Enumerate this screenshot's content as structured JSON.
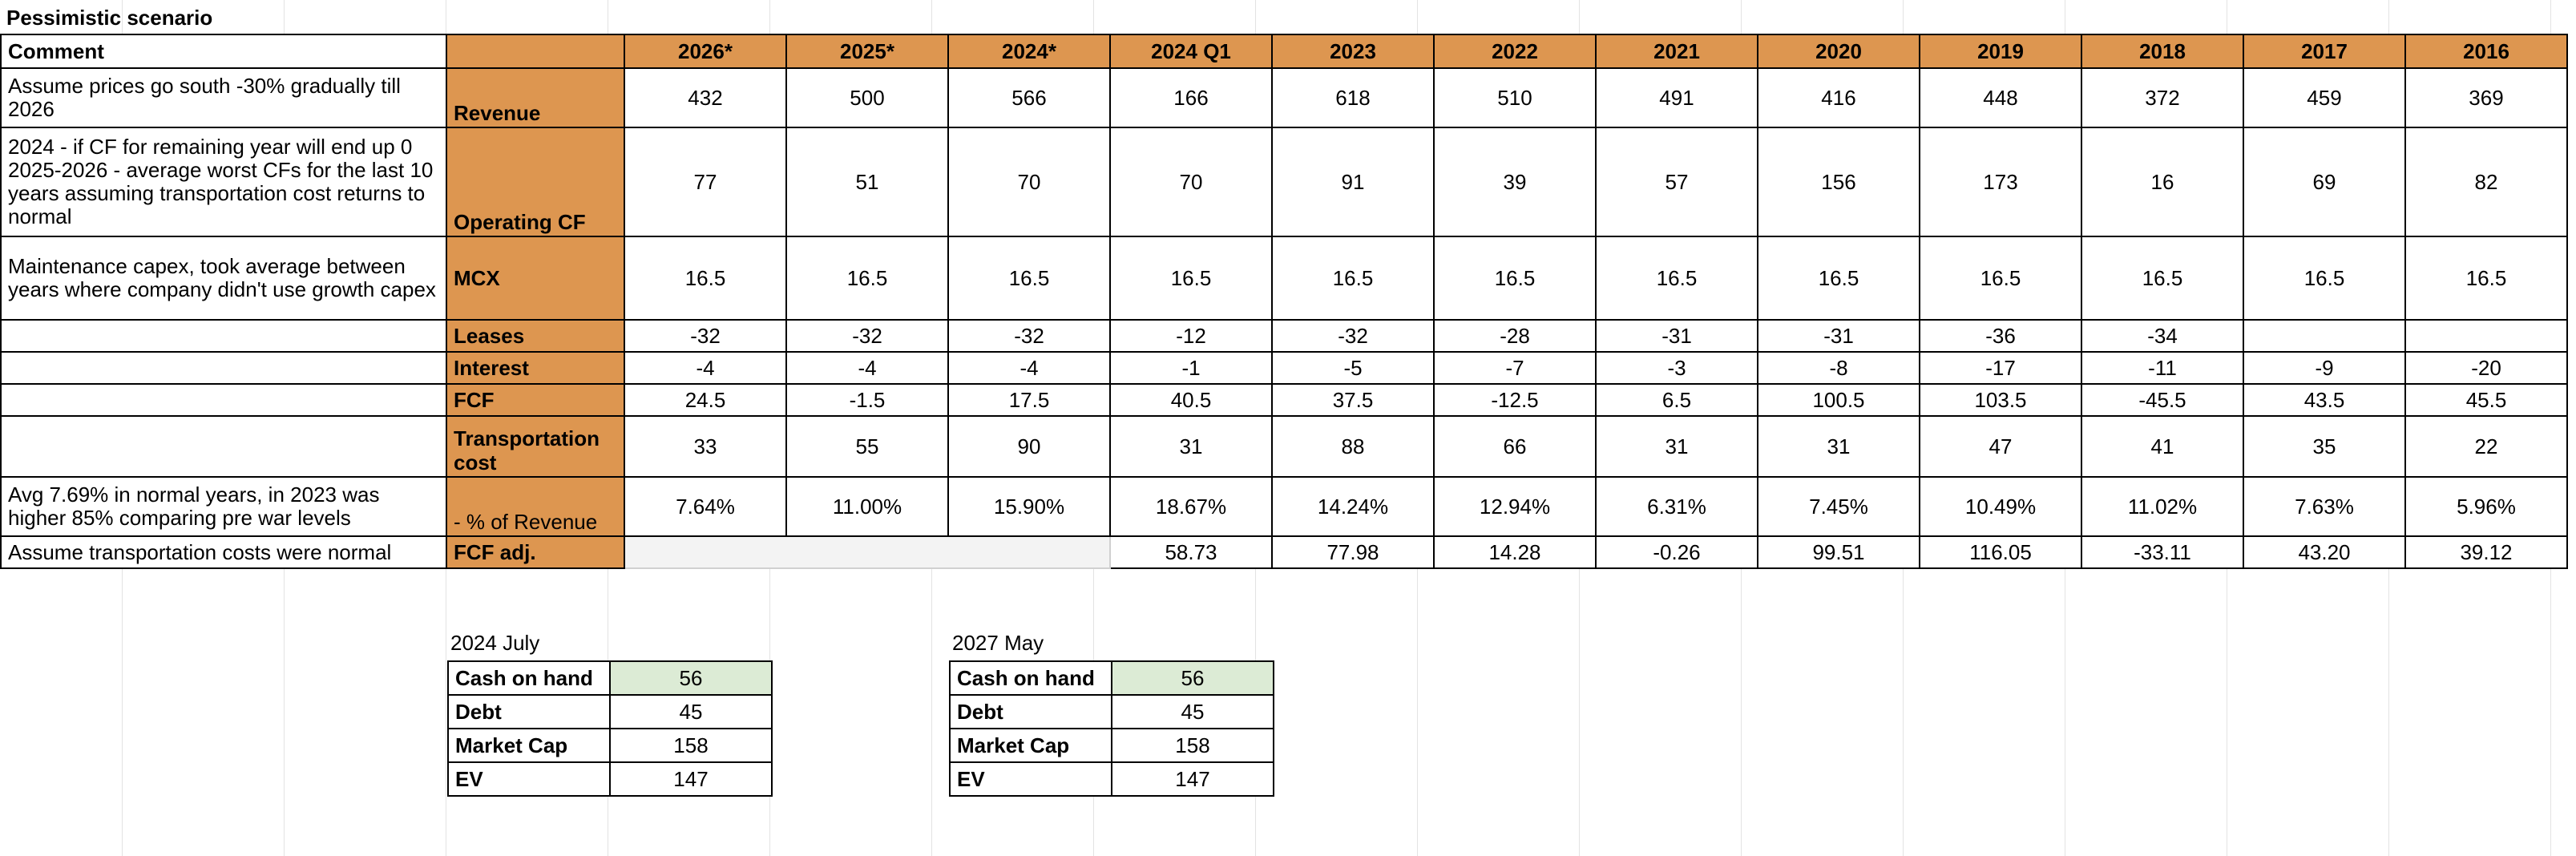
{
  "sheet": {
    "title": "Pessimistic scenario",
    "comment_header": "Comment",
    "columns": [
      "2026*",
      "2025*",
      "2024*",
      "2024 Q1",
      "2023",
      "2022",
      "2021",
      "2020",
      "2019",
      "2018",
      "2017",
      "2016"
    ],
    "rows": [
      {
        "comment": "Assume prices go south -30% gradually till 2026",
        "label": "Revenue",
        "values": [
          "432",
          "500",
          "566",
          "166",
          "618",
          "510",
          "491",
          "416",
          "448",
          "372",
          "459",
          "369"
        ]
      },
      {
        "comment": "2024 - if CF for remaining year will end up 0 2025-2026 - average worst CFs for the last 10 years assuming transportation cost returns to normal",
        "label": "Operating CF",
        "values": [
          "77",
          "51",
          "70",
          "70",
          "91",
          "39",
          "57",
          "156",
          "173",
          "16",
          "69",
          "82"
        ]
      },
      {
        "comment": "Maintenance capex, took average between years where company didn't use growth capex",
        "label": "MCX",
        "values": [
          "16.5",
          "16.5",
          "16.5",
          "16.5",
          "16.5",
          "16.5",
          "16.5",
          "16.5",
          "16.5",
          "16.5",
          "16.5",
          "16.5"
        ]
      },
      {
        "comment": "",
        "label": "Leases",
        "values": [
          "-32",
          "-32",
          "-32",
          "-12",
          "-32",
          "-28",
          "-31",
          "-31",
          "-36",
          "-34",
          "",
          ""
        ]
      },
      {
        "comment": "",
        "label": "Interest",
        "values": [
          "-4",
          "-4",
          "-4",
          "-1",
          "-5",
          "-7",
          "-3",
          "-8",
          "-17",
          "-11",
          "-9",
          "-20"
        ]
      },
      {
        "comment": "",
        "label": "FCF",
        "values": [
          "24.5",
          "-1.5",
          "17.5",
          "40.5",
          "37.5",
          "-12.5",
          "6.5",
          "100.5",
          "103.5",
          "-45.5",
          "43.5",
          "45.5"
        ]
      },
      {
        "comment": "",
        "label": "Transportation cost",
        "values": [
          "33",
          "55",
          "90",
          "31",
          "88",
          "66",
          "31",
          "31",
          "47",
          "41",
          "35",
          "22"
        ]
      },
      {
        "comment": "Avg 7.69% in normal years, in 2023 was higher 85% comparing pre war levels",
        "label": "- % of Revenue",
        "values": [
          "7.64%",
          "11.00%",
          "15.90%",
          "18.67%",
          "14.24%",
          "12.94%",
          "6.31%",
          "7.45%",
          "10.49%",
          "11.02%",
          "7.63%",
          "5.96%"
        ]
      },
      {
        "comment": "Assume transportation costs were normal",
        "label": "FCF adj.",
        "values": [
          "",
          "",
          "",
          "58.73",
          "77.98",
          "14.28",
          "-0.26",
          "99.51",
          "116.05",
          "-33.11",
          "43.20",
          "39.12"
        ]
      }
    ]
  },
  "summary_july": {
    "title": "2024 July",
    "rows": [
      {
        "label": "Cash on hand",
        "value": "56"
      },
      {
        "label": "Debt",
        "value": "45"
      },
      {
        "label": "Market Cap",
        "value": "158"
      },
      {
        "label": "EV",
        "value": "147"
      }
    ]
  },
  "summary_may": {
    "title": "2027 May",
    "rows": [
      {
        "label": "Cash on hand",
        "value": "56"
      },
      {
        "label": "Debt",
        "value": "45"
      },
      {
        "label": "Market Cap",
        "value": "158"
      },
      {
        "label": "EV",
        "value": "147"
      }
    ]
  },
  "colors": {
    "header_fill": "#dd9650",
    "cash_fill": "#dcebd5",
    "blank_fill": "#f3f3f3"
  }
}
